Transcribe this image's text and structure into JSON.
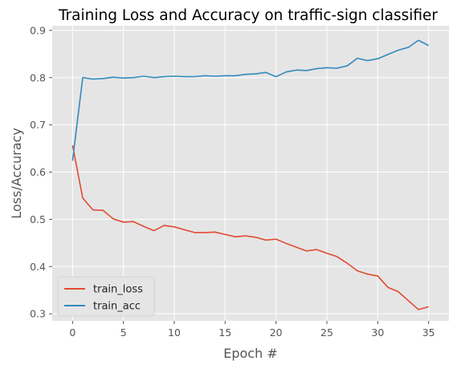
{
  "chart_data": {
    "type": "line",
    "title": "Training Loss and Accuracy on traffic-sign classifier",
    "xlabel": "Epoch #",
    "ylabel": "Loss/Accuracy",
    "xlim": [
      -2,
      37
    ],
    "ylim": [
      0.285,
      0.91
    ],
    "x_ticks": [
      0,
      5,
      10,
      15,
      20,
      25,
      30,
      35
    ],
    "y_ticks": [
      0.3,
      0.4,
      0.5,
      0.6,
      0.7,
      0.8,
      0.9
    ],
    "grid": true,
    "legend_position": "lower-left",
    "x": [
      0,
      1,
      2,
      3,
      4,
      5,
      6,
      7,
      8,
      9,
      10,
      11,
      12,
      13,
      14,
      15,
      16,
      17,
      18,
      19,
      20,
      21,
      22,
      23,
      24,
      25,
      26,
      27,
      28,
      29,
      30,
      31,
      32,
      33,
      34,
      35
    ],
    "series": [
      {
        "name": "train_loss",
        "color": "#E24A33",
        "values": [
          0.657,
          0.545,
          0.52,
          0.519,
          0.501,
          0.494,
          0.495,
          0.485,
          0.476,
          0.487,
          0.484,
          0.478,
          0.472,
          0.472,
          0.473,
          0.468,
          0.463,
          0.465,
          0.462,
          0.456,
          0.458,
          0.449,
          0.441,
          0.433,
          0.436,
          0.428,
          0.421,
          0.407,
          0.391,
          0.384,
          0.38,
          0.356,
          0.347,
          0.328,
          0.309,
          0.315
        ]
      },
      {
        "name": "train_acc",
        "color": "#348ABD",
        "values": [
          0.624,
          0.8,
          0.797,
          0.798,
          0.801,
          0.799,
          0.8,
          0.803,
          0.8,
          0.802,
          0.803,
          0.802,
          0.802,
          0.804,
          0.803,
          0.804,
          0.804,
          0.807,
          0.808,
          0.811,
          0.802,
          0.812,
          0.816,
          0.815,
          0.819,
          0.821,
          0.82,
          0.825,
          0.841,
          0.836,
          0.84,
          0.849,
          0.858,
          0.864,
          0.879,
          0.868
        ]
      }
    ]
  }
}
